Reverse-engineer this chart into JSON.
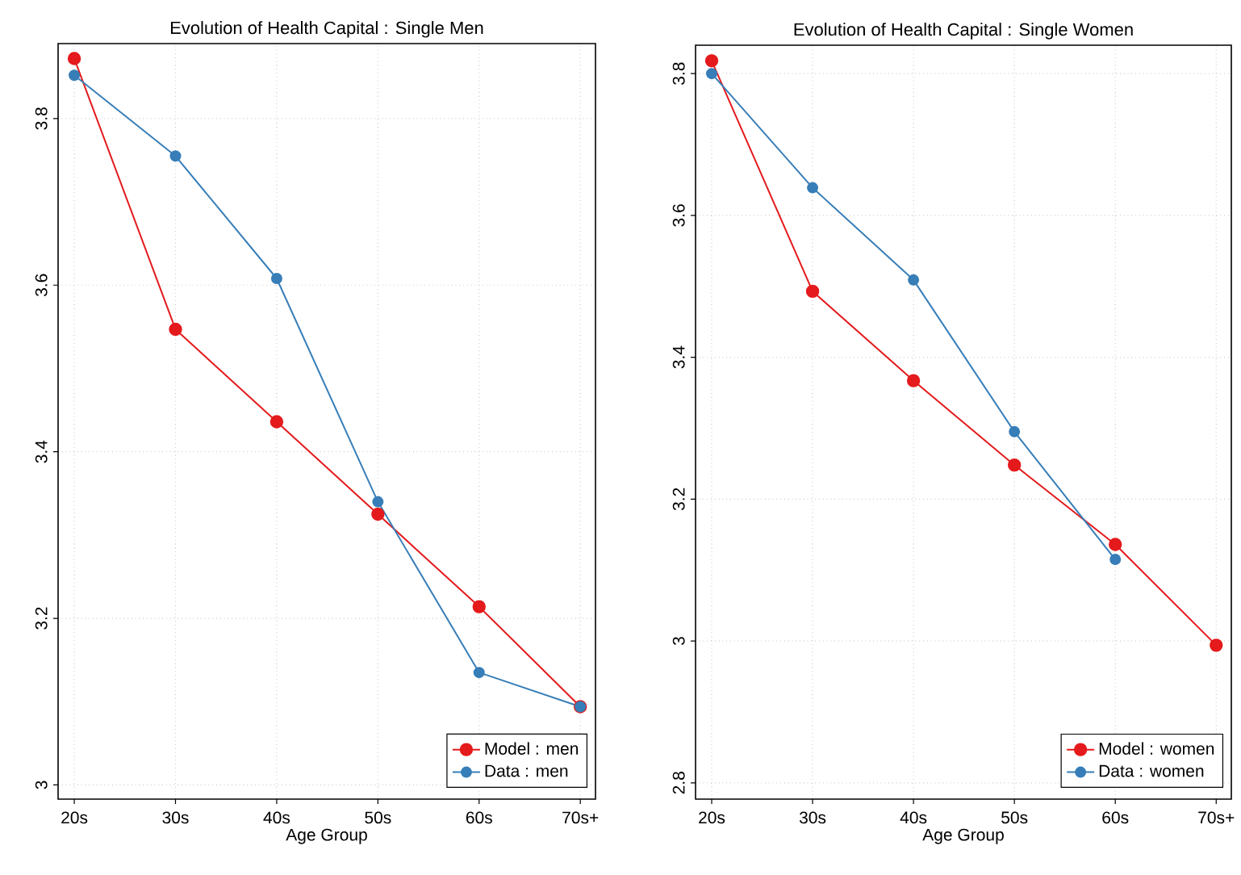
{
  "chart_data": [
    {
      "type": "line",
      "title": "Evolution of Health Capital : Single Men",
      "xlabel": "Age Group",
      "categories": [
        "20s",
        "30s",
        "40s",
        "50s",
        "60s",
        "70s+"
      ],
      "ylim": [
        2.983,
        3.89
      ],
      "yticks": [
        3,
        3.2,
        3.4,
        3.6,
        3.8
      ],
      "grid": true,
      "legend": "bottom right",
      "marker": "circle",
      "series": [
        {
          "name": "Model : men",
          "color": "#e41a1c",
          "values": [
            3.872,
            3.547,
            3.436,
            3.325,
            3.214,
            3.094
          ]
        },
        {
          "name": "Data : men",
          "color": "#377eb8",
          "values": [
            3.852,
            3.755,
            3.608,
            3.34,
            3.135,
            3.094
          ]
        }
      ]
    },
    {
      "type": "line",
      "title": "Evolution of Health Capital : Single Women",
      "xlabel": "Age Group",
      "categories": [
        "20s",
        "30s",
        "40s",
        "50s",
        "60s",
        "70s+"
      ],
      "ylim": [
        2.777,
        3.84
      ],
      "yticks": [
        2.8,
        3,
        3.2,
        3.4,
        3.6,
        3.8
      ],
      "grid": true,
      "legend": "bottom right",
      "marker": "circle",
      "series": [
        {
          "name": "Model : women",
          "color": "#e41a1c",
          "values": [
            3.818,
            3.493,
            3.367,
            3.248,
            3.136,
            2.994
          ]
        },
        {
          "name": "Data : women",
          "color": "#377eb8",
          "values": [
            3.8,
            3.639,
            3.509,
            3.295,
            3.115,
            null
          ]
        }
      ]
    }
  ]
}
